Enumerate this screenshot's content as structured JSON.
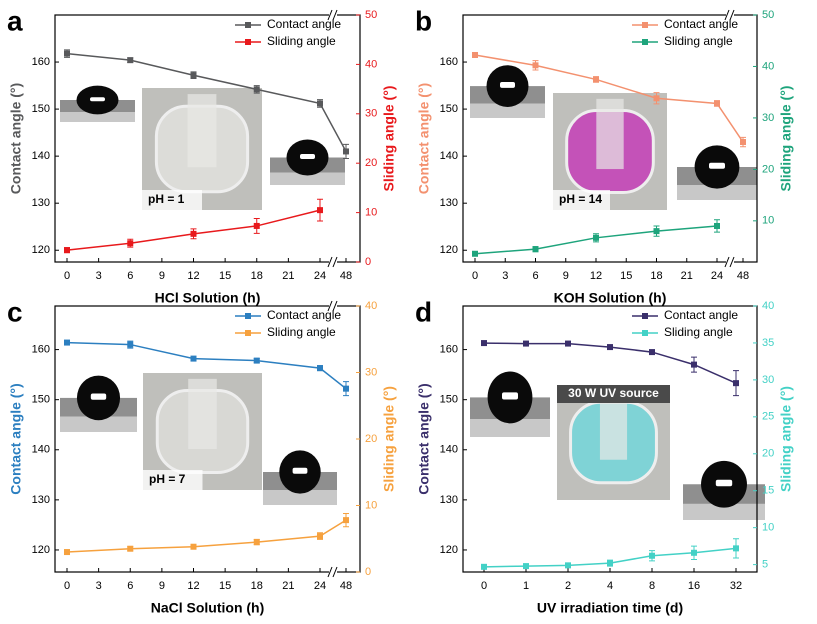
{
  "chart_data": [
    {
      "type": "line",
      "panel_label": "a",
      "xlabel": "HCl Solution (h)",
      "ylabel": "Contact angle (°)",
      "y2label": "Sliding angle (°)",
      "annotation": "pH = 1",
      "x": [
        0,
        6,
        12,
        18,
        24,
        48
      ],
      "xticks": [
        0,
        3,
        6,
        9,
        12,
        15,
        18,
        21,
        24,
        48
      ],
      "xlim": [
        0,
        48
      ],
      "axis_break": [
        24,
        48
      ],
      "ylim": [
        117.5,
        170
      ],
      "yticks": [
        120,
        130,
        140,
        150,
        160
      ],
      "y2lim": [
        0,
        50
      ],
      "y2ticks": [
        0,
        10,
        20,
        30,
        40,
        50
      ],
      "legend": "upper right",
      "series": [
        {
          "name": "Contact angle",
          "color": "#58595b",
          "values": [
            161.8,
            160.4,
            157.2,
            154.2,
            151.2,
            141
          ],
          "errors": [
            0.8,
            0.5,
            0.7,
            0.8,
            0.8,
            1.5
          ]
        },
        {
          "name": "Sliding angle",
          "color": "#e8191c",
          "axis": "y2",
          "values": [
            2.4,
            3.8,
            5.7,
            7.3,
            10.5,
            null
          ],
          "errors": [
            0.5,
            0.8,
            1,
            1.5,
            2.2,
            null
          ]
        }
      ]
    },
    {
      "type": "line",
      "panel_label": "b",
      "xlabel": "KOH Solution (h)",
      "ylabel": "Contact angle (°)",
      "y2label": "Sliding angle (°)",
      "annotation": "pH = 14",
      "x": [
        0,
        6,
        12,
        18,
        24,
        48
      ],
      "xticks": [
        0,
        3,
        6,
        9,
        12,
        15,
        18,
        21,
        24,
        48
      ],
      "xlim": [
        0,
        48
      ],
      "axis_break": [
        24,
        48
      ],
      "ylim": [
        117.5,
        170
      ],
      "yticks": [
        120,
        130,
        140,
        150,
        160
      ],
      "y2lim": [
        2,
        50
      ],
      "y2ticks": [
        10,
        20,
        30,
        40,
        50
      ],
      "legend": "upper right",
      "series": [
        {
          "name": "Contact angle",
          "color": "#f3916f",
          "values": [
            161.5,
            159.3,
            156.3,
            152.3,
            151.2,
            143
          ],
          "errors": [
            0.5,
            1,
            0.6,
            1.2,
            0.6,
            1
          ]
        },
        {
          "name": "Sliding angle",
          "color": "#1ea47c",
          "axis": "y2",
          "values": [
            3.6,
            4.5,
            6.7,
            8,
            9,
            null
          ],
          "errors": [
            0.4,
            0.5,
            0.8,
            1,
            1.2,
            null
          ]
        }
      ]
    },
    {
      "type": "line",
      "panel_label": "c",
      "xlabel": "NaCl Solution (h)",
      "ylabel": "Contact angle (°)",
      "y2label": "Sliding angle (°)",
      "annotation": "pH = 7",
      "x": [
        0,
        6,
        12,
        18,
        24,
        48
      ],
      "xticks": [
        0,
        3,
        6,
        9,
        12,
        15,
        18,
        21,
        24,
        48
      ],
      "xlim": [
        0,
        48
      ],
      "axis_break": [
        24,
        48
      ],
      "ylim": [
        115.6,
        168.7
      ],
      "yticks": [
        120,
        130,
        140,
        150,
        160
      ],
      "y2lim": [
        0,
        40
      ],
      "y2ticks": [
        0,
        10,
        20,
        30,
        40
      ],
      "legend": "upper right",
      "series": [
        {
          "name": "Contact angle",
          "color": "#2c7fc0",
          "values": [
            161.4,
            161,
            158.2,
            157.8,
            156.3,
            152.2
          ],
          "errors": [
            0.4,
            0.7,
            0.4,
            0.4,
            0.5,
            1.4
          ]
        },
        {
          "name": "Sliding angle",
          "color": "#f6a13e",
          "axis": "y2",
          "values": [
            3,
            3.5,
            3.8,
            4.5,
            5.4,
            7.8
          ],
          "errors": [
            0.2,
            0.3,
            0.3,
            0.4,
            0.5,
            1
          ]
        }
      ]
    },
    {
      "type": "line",
      "panel_label": "d",
      "xlabel": "UV irradiation time (d)",
      "ylabel": "Contact angle (°)",
      "y2label": "Sliding angle (°)",
      "annotation": "30 W UV source",
      "categories": [
        "0",
        "1",
        "2",
        "4",
        "8",
        "16",
        "32"
      ],
      "ylim": [
        115.6,
        168.7
      ],
      "yticks": [
        120,
        130,
        140,
        150,
        160
      ],
      "y2lim": [
        4,
        40
      ],
      "y2ticks": [
        5,
        10,
        15,
        20,
        25,
        30,
        35,
        40
      ],
      "legend": "upper right",
      "series": [
        {
          "name": "Contact angle",
          "color": "#3a2f6b",
          "values": [
            161.3,
            161.2,
            161.2,
            160.5,
            159.5,
            157,
            153.3
          ],
          "errors": [
            0.3,
            0.3,
            0.3,
            0.3,
            0.4,
            1.5,
            2.5
          ]
        },
        {
          "name": "Sliding angle",
          "color": "#43d1c6",
          "axis": "y2",
          "values": [
            4.7,
            4.8,
            4.9,
            5.2,
            6.2,
            6.6,
            7.2
          ],
          "errors": [
            0.2,
            0.2,
            0.2,
            0.4,
            0.7,
            0.9,
            1.3
          ]
        }
      ]
    }
  ]
}
